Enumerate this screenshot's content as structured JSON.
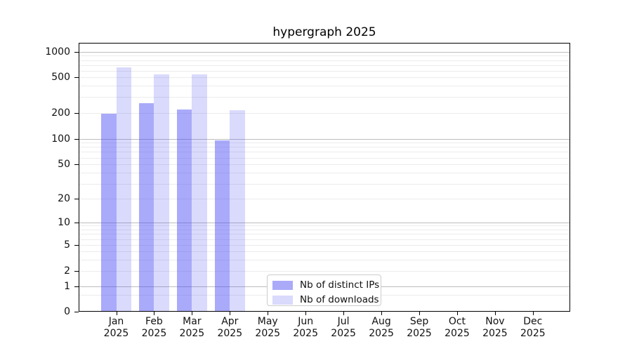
{
  "title": "hypergraph 2025",
  "chart_data": {
    "type": "bar",
    "title": "hypergraph 2025",
    "x_months": [
      "Jan",
      "Feb",
      "Mar",
      "Apr",
      "May",
      "Jun",
      "Jul",
      "Aug",
      "Sep",
      "Oct",
      "Nov",
      "Dec"
    ],
    "x_year": "2025",
    "series": [
      {
        "name": "Nb of distinct IPs",
        "color": "#aaaaf9",
        "bar_fill": "rgba(70,70,245,0.46)",
        "values": [
          195,
          255,
          220,
          95,
          null,
          null,
          null,
          null,
          null,
          null,
          null,
          null
        ]
      },
      {
        "name": "Nb of downloads",
        "color": "#dadafc",
        "bar_fill": "rgba(70,70,245,0.20)",
        "values": [
          660,
          540,
          540,
          215,
          null,
          null,
          null,
          null,
          null,
          null,
          null,
          null
        ]
      }
    ],
    "yaxis": {
      "scale": "symlog",
      "ticks": [
        1000,
        500,
        200,
        100,
        50,
        20,
        10,
        5,
        2,
        1,
        0
      ],
      "ylim": [
        0,
        1000
      ],
      "major_grid_at": [
        1,
        10,
        100,
        1000
      ]
    },
    "legend": {
      "position": "lower center"
    },
    "grid": "horizontal"
  }
}
